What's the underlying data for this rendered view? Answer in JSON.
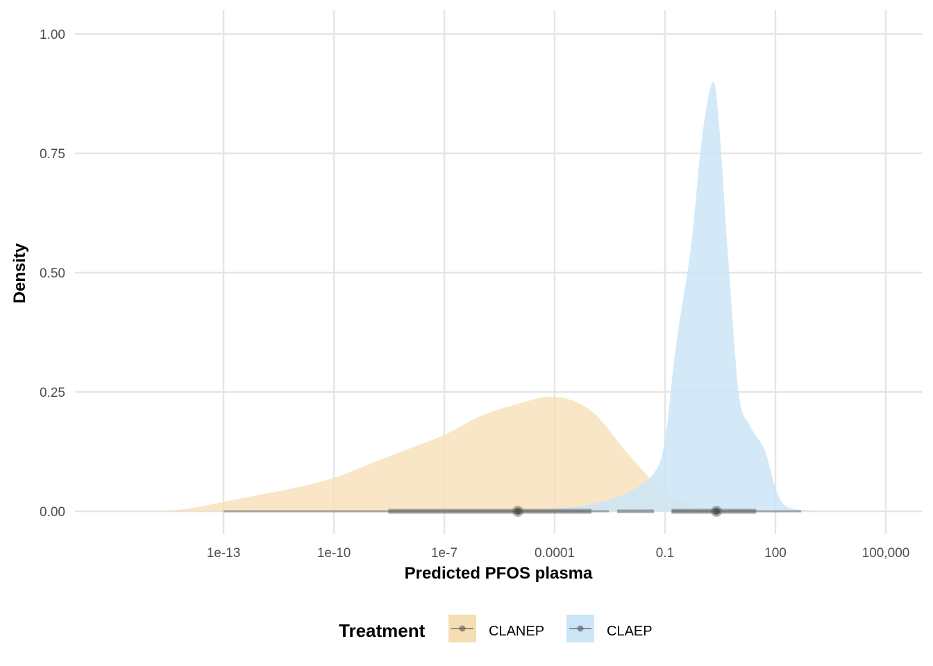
{
  "chart_data": {
    "type": "area",
    "title": "",
    "xlabel": "Predicted PFOS plasma",
    "ylabel": "Density",
    "x_scale": "log10",
    "xlim": [
      1e-16,
      1000000.0
    ],
    "ylim": [
      0,
      1.0
    ],
    "x_ticks": [
      {
        "value": 1e-13,
        "label": "1e-13"
      },
      {
        "value": 1e-10,
        "label": "1e-10"
      },
      {
        "value": 1e-07,
        "label": "1e-7"
      },
      {
        "value": 0.0001,
        "label": "0.0001"
      },
      {
        "value": 0.1,
        "label": "0.1"
      },
      {
        "value": 100,
        "label": "100"
      },
      {
        "value": 100000,
        "label": "100,000"
      }
    ],
    "y_ticks": [
      {
        "value": 0,
        "label": "0.00"
      },
      {
        "value": 0.25,
        "label": "0.25"
      },
      {
        "value": 0.5,
        "label": "0.50"
      },
      {
        "value": 0.75,
        "label": "0.75"
      },
      {
        "value": 1.0,
        "label": "1.00"
      }
    ],
    "grid": true,
    "legend": {
      "title": "Treatment",
      "position": "bottom"
    },
    "series": [
      {
        "name": "CLANEP",
        "color": "#f5deb3",
        "x": [
          1e-15,
          1e-14,
          1e-13,
          1e-12,
          1e-11,
          1e-10,
          1e-09,
          1e-08,
          1e-07,
          1e-06,
          1e-05,
          0.0001,
          0.001,
          0.01,
          0.1,
          1,
          10,
          100
        ],
        "y": [
          0.0,
          0.005,
          0.02,
          0.035,
          0.05,
          0.07,
          0.1,
          0.13,
          0.16,
          0.2,
          0.225,
          0.24,
          0.21,
          0.12,
          0.04,
          0.008,
          0.002,
          0.0
        ],
        "median": 1e-05,
        "interval_inner": [
          3e-09,
          0.001
        ],
        "interval_outer": [
          1e-13,
          0.003
        ],
        "interval_extra": [
          0.005,
          0.05
        ]
      },
      {
        "name": "CLAEP",
        "color": "#cce5f7",
        "x": [
          1e-05,
          0.0001,
          0.001,
          0.01,
          0.05,
          0.1,
          0.2,
          0.5,
          1,
          2,
          3,
          5,
          10,
          20,
          50,
          100,
          200,
          1000,
          10000
        ],
        "y": [
          0.0,
          0.005,
          0.015,
          0.04,
          0.08,
          0.15,
          0.35,
          0.55,
          0.78,
          0.9,
          0.8,
          0.55,
          0.25,
          0.18,
          0.13,
          0.05,
          0.01,
          0.002,
          0.0
        ],
        "median": 2.5,
        "interval_inner": [
          0.15,
          30
        ],
        "interval_outer": [
          0.15,
          500
        ]
      }
    ]
  }
}
